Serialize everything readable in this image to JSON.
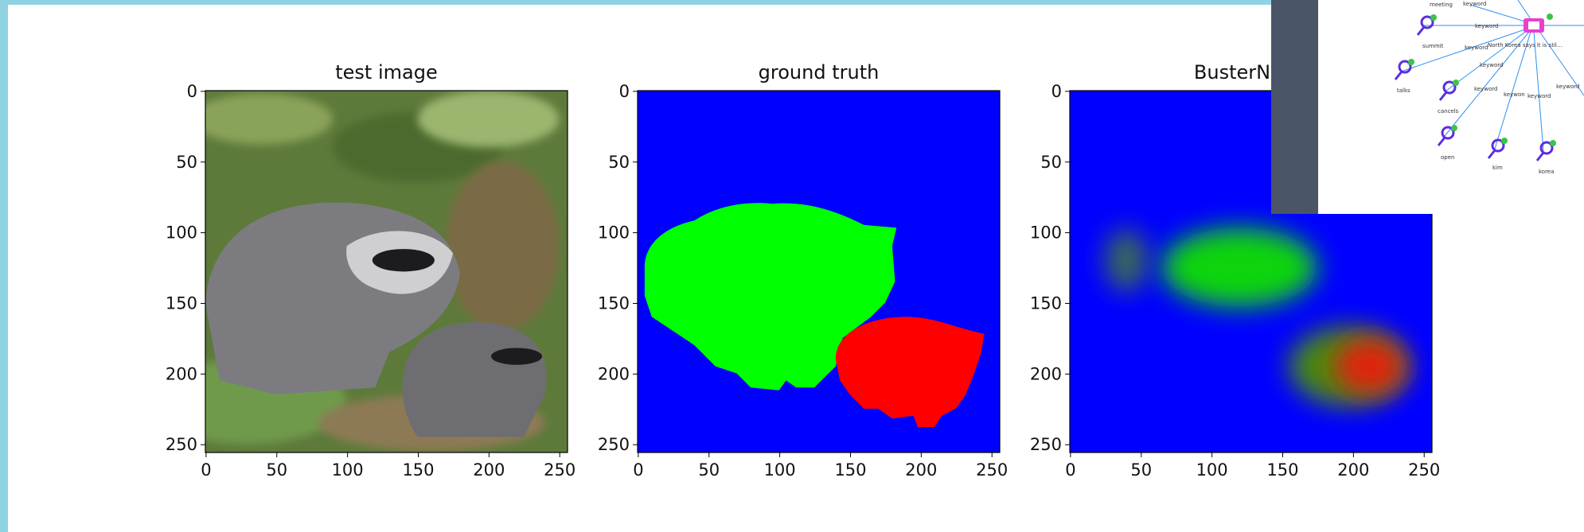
{
  "panels": [
    {
      "title": "test image",
      "xticks": [
        0,
        50,
        100,
        150,
        200,
        250
      ],
      "yticks": [
        0,
        50,
        100,
        150,
        200,
        250
      ]
    },
    {
      "title": "ground truth",
      "xticks": [
        0,
        50,
        100,
        150,
        200,
        250
      ],
      "yticks": [
        0,
        50,
        100,
        150,
        200,
        250
      ]
    },
    {
      "title": "BusterNet p",
      "xticks": [
        0,
        50,
        100,
        150,
        200,
        250
      ],
      "yticks": [
        0,
        50,
        100,
        150,
        200,
        250
      ]
    }
  ],
  "overlay": {
    "labels": [
      "meeting",
      "keyword",
      "keyword",
      "summit",
      "keyword",
      "North Korea says it is stil...",
      "keyword",
      "talks",
      "keyword",
      "keywon",
      "keyword",
      "keyword",
      "cancels",
      "open",
      "kim",
      "korea"
    ]
  }
}
